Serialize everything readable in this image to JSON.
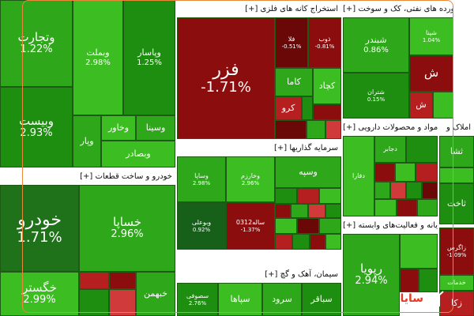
{
  "colors": {
    "positive": "#2ea81a",
    "negative": "#8c0d0d",
    "header_bg": "#ffffff",
    "border_highlight": "#e8893a"
  },
  "logo": {
    "text": "سایا",
    "icon": "bar-chart-icon"
  },
  "sections": {
    "mines": {
      "title": "[+] استخراج کانه های فلزی",
      "fezar": {
        "name": "فزر",
        "pct": "-1.71%"
      },
      "t1": {
        "name": "فلا",
        "pct": "-0.51%"
      },
      "t2": {
        "name": "ذوب",
        "pct": "-0.81%"
      },
      "t3": {
        "name": "کاما"
      },
      "t4": {
        "name": "کچاد"
      },
      "t5": {
        "name": "کرو"
      }
    },
    "refinery": {
      "title": "[+] فراورده های نفتی، کک و سوخت",
      "t1": {
        "name": "شبندر",
        "pct": "0.86%"
      },
      "t2": {
        "name": "شپنا",
        "pct": "1.04%"
      },
      "t3": {
        "name": "شتران",
        "pct": "0.15%"
      },
      "t4": {
        "name": "ش"
      },
      "t5": {
        "name": "ش"
      }
    },
    "left_top": {
      "t1": {
        "name": "وتجارت",
        "pct": "1.22%"
      },
      "t2": {
        "name": "وبیست",
        "pct": "2.93%"
      },
      "t3": {
        "name": "وبملت",
        "pct": "2.98%"
      },
      "t4": {
        "name": "وپاسار",
        "pct": "1.25%"
      },
      "t5": {
        "name": "وسینا"
      },
      "t6": {
        "name": "وخاور"
      },
      "t7": {
        "name": "وپار"
      },
      "t8": {
        "name": "وبصادر"
      }
    },
    "auto": {
      "title": "[+] خودرو و ساخت قطعات",
      "t1": {
        "name": "خودرو",
        "pct": "1.71%"
      },
      "t2": {
        "name": "خساپا",
        "pct": "2.96%"
      },
      "t3": {
        "name": "خگستر",
        "pct": "2.99%"
      },
      "t4": {
        "name": "خبهمن"
      }
    },
    "invest": {
      "title": "[+] سرمایه گذاریها",
      "t1": {
        "name": "وسپه"
      },
      "t2": {
        "name": "وساپا",
        "pct": "2.98%"
      },
      "t3": {
        "name": "وخارزم",
        "pct": "2.96%"
      },
      "t4": {
        "name": "وبوعلی",
        "pct": "0.92%"
      },
      "t5": {
        "name": "ساله0312",
        "pct": "-1.37%"
      }
    },
    "cement": {
      "title": "[+] سیمان، آهک و گچ",
      "t1": {
        "name": "سپاها"
      },
      "t2": {
        "name": "سرود"
      },
      "t3": {
        "name": "سباقر"
      },
      "t4": {
        "name": "سصوفی",
        "pct": "2.76%"
      }
    },
    "pharma": {
      "title": "[+] مواد و محصولات دارویی",
      "t1": {
        "name": "دفارا"
      },
      "t2": {
        "name": "دجابر"
      }
    },
    "it": {
      "title": "[+] رایانه و فعالیت‌های وابسته",
      "t1": {
        "name": "رپویا",
        "pct": "2.94%"
      }
    },
    "right_col": {
      "t1": {
        "name": "املاک و"
      },
      "t2": {
        "name": "ثشا"
      },
      "t3": {
        "name": "ثاخت"
      },
      "t4": {
        "name": "خدمات"
      },
      "t5": {
        "name": "زاگرس",
        "pct": "-1.09%"
      },
      "t6": {
        "name": "زکا"
      }
    }
  }
}
